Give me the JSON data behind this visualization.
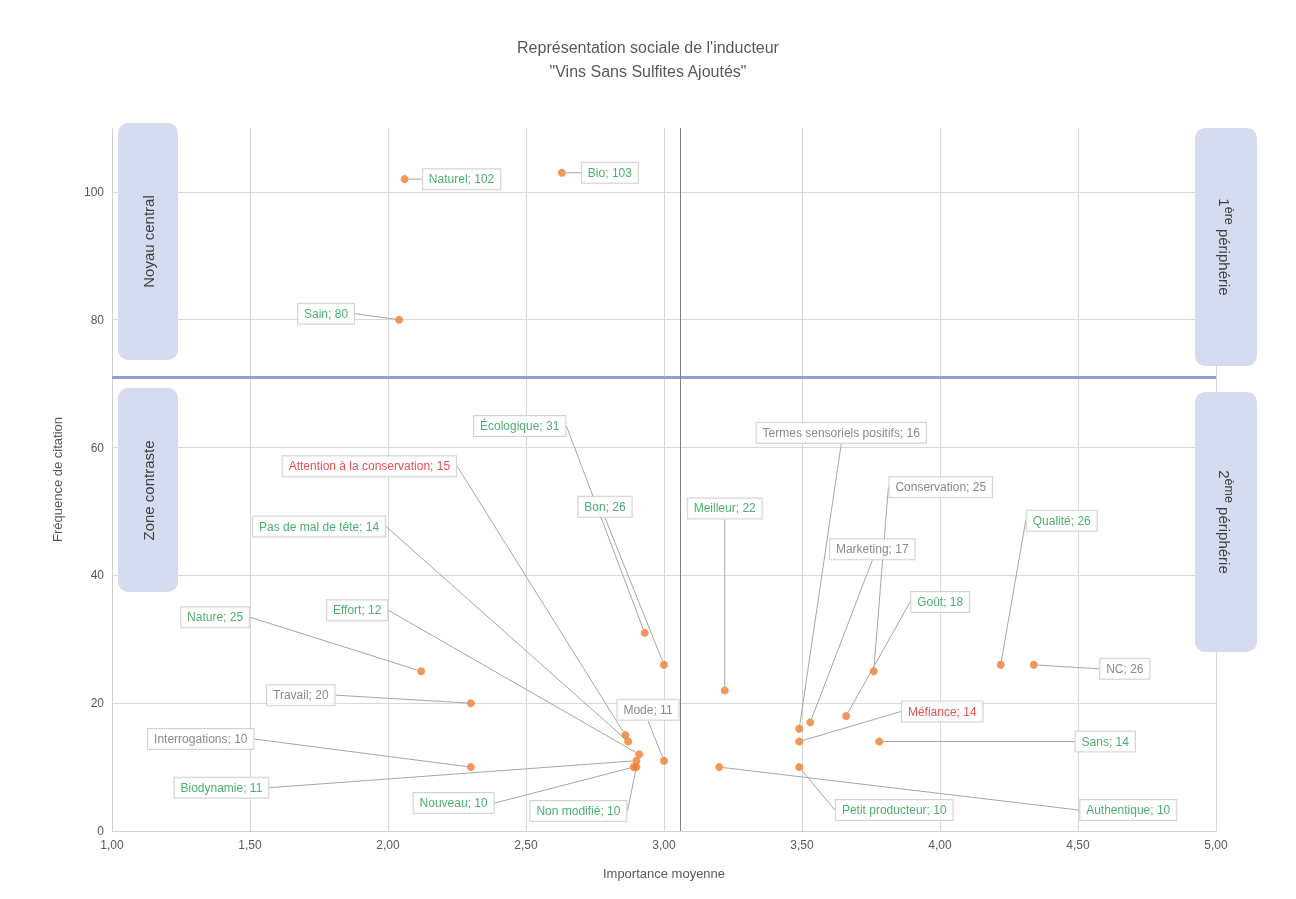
{
  "chart_data": {
    "type": "scatter",
    "title": "Représentation sociale de l'inducteur\n\"Vins Sans Sulfites Ajoutés\"",
    "xlabel": "Importance moyenne",
    "ylabel": "Fréquence de citation",
    "xlim": [
      1,
      5
    ],
    "xticks": [
      {
        "value": 1,
        "label": "1,00"
      },
      {
        "value": 1.5,
        "label": "1,50"
      },
      {
        "value": 2,
        "label": "2,00"
      },
      {
        "value": 2.5,
        "label": "2,50"
      },
      {
        "value": 3,
        "label": "3,00"
      },
      {
        "value": 3.5,
        "label": "3,50"
      },
      {
        "value": 4,
        "label": "4,00"
      },
      {
        "value": 4.5,
        "label": "4,50"
      },
      {
        "value": 5,
        "label": "5,00"
      }
    ],
    "ylim": [
      0,
      110
    ],
    "yticks": [
      0,
      20,
      40,
      60,
      80,
      100
    ],
    "grid": true,
    "marker": "circle",
    "series": [
      {
        "color": "#ed7d31",
        "x": [
          2.06,
          2.63,
          2.04,
          2.93,
          3.0,
          3.22,
          3.66,
          4.22,
          3.78,
          3.49,
          3.2,
          2.12,
          2.91,
          2.87,
          2.9,
          2.89,
          2.9
        ],
        "values": [
          102,
          103,
          80,
          31,
          26,
          22,
          18,
          26,
          14,
          10,
          10,
          25,
          12,
          14,
          11,
          10,
          10
        ],
        "value_labels": [
          "Naturel; 102",
          "Bio; 103",
          "Sain; 80",
          "Écologique; 31",
          "Bon; 26",
          "Meilleur; 22",
          "Goût; 18",
          "Qualité; 26",
          "Sans; 14",
          "Petit producteur; 10",
          "Authentique; 10",
          "Nature; 25",
          "Effort; 12",
          "Pas de mal de tête; 14",
          "Biodynamie; 11",
          "Nouveau; 10",
          "Non modifié; 10"
        ]
      },
      {
        "color": "#ed7d31",
        "x": [
          3.49,
          3.76,
          3.53,
          4.34,
          2.3,
          2.3,
          3.0
        ],
        "values": [
          16,
          25,
          17,
          26,
          20,
          10,
          11
        ],
        "value_labels": [
          "Termes sensoriels positifs; 16",
          "Conservation; 25",
          "Marketing; 17",
          "NC; 26",
          "Travail; 20",
          "Interrogations; 10",
          "Mode; 11"
        ]
      },
      {
        "color": "#ed7d31",
        "x": [
          2.86,
          3.49
        ],
        "values": [
          15,
          14
        ],
        "value_labels": [
          "Attention à la conservation; 15",
          "Méfiance; 14"
        ]
      }
    ],
    "ref_lines": [
      {
        "axis": "y",
        "value": 71,
        "color": "#8f9fcf"
      },
      {
        "axis": "x",
        "value": 3.06,
        "color": "#808080"
      }
    ],
    "annotations": [
      "Noyau central",
      "Zone contraste",
      "1$^{ère}$ périphérie",
      "2$^{ème}$ périphérie"
    ]
  }
}
